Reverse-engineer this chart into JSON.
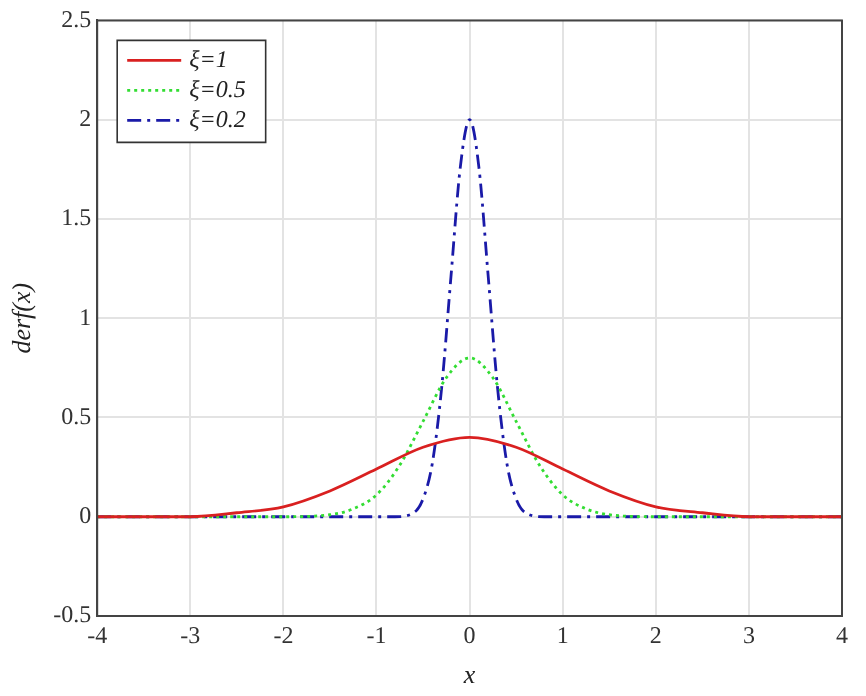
{
  "chart_data": {
    "type": "line",
    "xlabel": "x",
    "ylabel": "derf(x)",
    "xlim": [
      -4,
      4
    ],
    "xticks": [
      -4,
      -3,
      -2,
      -1,
      0,
      1,
      2,
      3,
      4
    ],
    "ylim": [
      -0.5,
      2.5
    ],
    "yticks": [
      -0.5,
      0,
      0.5,
      1,
      1.5,
      2,
      2.5
    ],
    "grid": true,
    "legend": "top left",
    "marker": "none",
    "series": [
      {
        "name": "ξ=1",
        "color": "#d92020",
        "line_style": "solid",
        "x": [
          -4,
          -3.5,
          -3,
          -2.5,
          -2,
          -1.5,
          -1,
          -0.5,
          0,
          0.5,
          1,
          1.5,
          2,
          2.5,
          3,
          3.5,
          4
        ],
        "values": [
          0,
          0,
          0,
          0.02,
          0.05,
          0.13,
          0.24,
          0.35,
          0.4,
          0.35,
          0.24,
          0.13,
          0.05,
          0.02,
          0,
          0,
          0
        ]
      },
      {
        "name": "ξ=0.5",
        "color": "#33dd33",
        "line_style": "dotted",
        "x": [
          -4,
          -2,
          -1.5,
          -1.25,
          -1,
          -0.75,
          -0.5,
          -0.25,
          0,
          0.25,
          0.5,
          0.75,
          1,
          1.25,
          1.5,
          2,
          4
        ],
        "values": [
          0,
          0,
          0.01,
          0.04,
          0.11,
          0.26,
          0.48,
          0.7,
          0.8,
          0.7,
          0.48,
          0.26,
          0.11,
          0.04,
          0.01,
          0,
          0
        ]
      },
      {
        "name": "ξ=0.2",
        "color": "#1a1aa8",
        "line_style": "dashed",
        "x": [
          -4,
          -0.8,
          -0.6,
          -0.5,
          -0.4,
          -0.3,
          -0.2,
          -0.1,
          0,
          0.1,
          0.2,
          0.3,
          0.4,
          0.5,
          0.6,
          0.8,
          4
        ],
        "values": [
          0,
          0,
          0.02,
          0.09,
          0.27,
          0.65,
          1.21,
          1.76,
          2,
          1.76,
          1.21,
          0.65,
          0.27,
          0.09,
          0.02,
          0,
          0
        ]
      }
    ]
  }
}
